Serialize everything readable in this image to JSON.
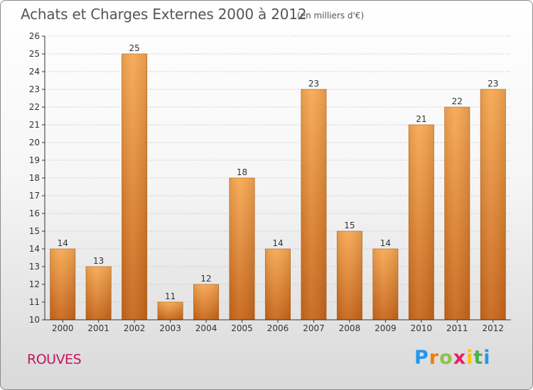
{
  "header": {
    "title": "Achats et Charges Externes 2000 à 2012",
    "unit": "(en milliers d'€)"
  },
  "footer": {
    "commune": "ROUVES",
    "brand": {
      "letters": [
        "P",
        "r",
        "o",
        "x",
        "i",
        "t",
        "i"
      ],
      "colors": [
        "#2196f3",
        "#f57c00",
        "#8bc34a",
        "#e91e63",
        "#ffc107",
        "#4caf50",
        "#2196f3"
      ]
    }
  },
  "colors": {
    "bar_light": "#f7a852",
    "bar_dark": "#c8661a",
    "axis": "#333333",
    "grid": "#cccccc",
    "text": "#333333"
  },
  "chart_data": {
    "type": "bar",
    "title": "Achats et Charges Externes 2000 à 2012",
    "categories": [
      "2000",
      "2001",
      "2002",
      "2003",
      "2004",
      "2005",
      "2006",
      "2007",
      "2008",
      "2009",
      "2010",
      "2011",
      "2012"
    ],
    "values": [
      14,
      13,
      25,
      11,
      12,
      18,
      14,
      23,
      15,
      14,
      21,
      22,
      23
    ],
    "yticks": [
      10,
      11,
      12,
      13,
      14,
      15,
      16,
      17,
      18,
      19,
      20,
      21,
      22,
      23,
      24,
      25,
      26
    ],
    "ylim": [
      10,
      26
    ],
    "xlabel": "",
    "ylabel": "",
    "grid": true,
    "data_labels": true
  }
}
